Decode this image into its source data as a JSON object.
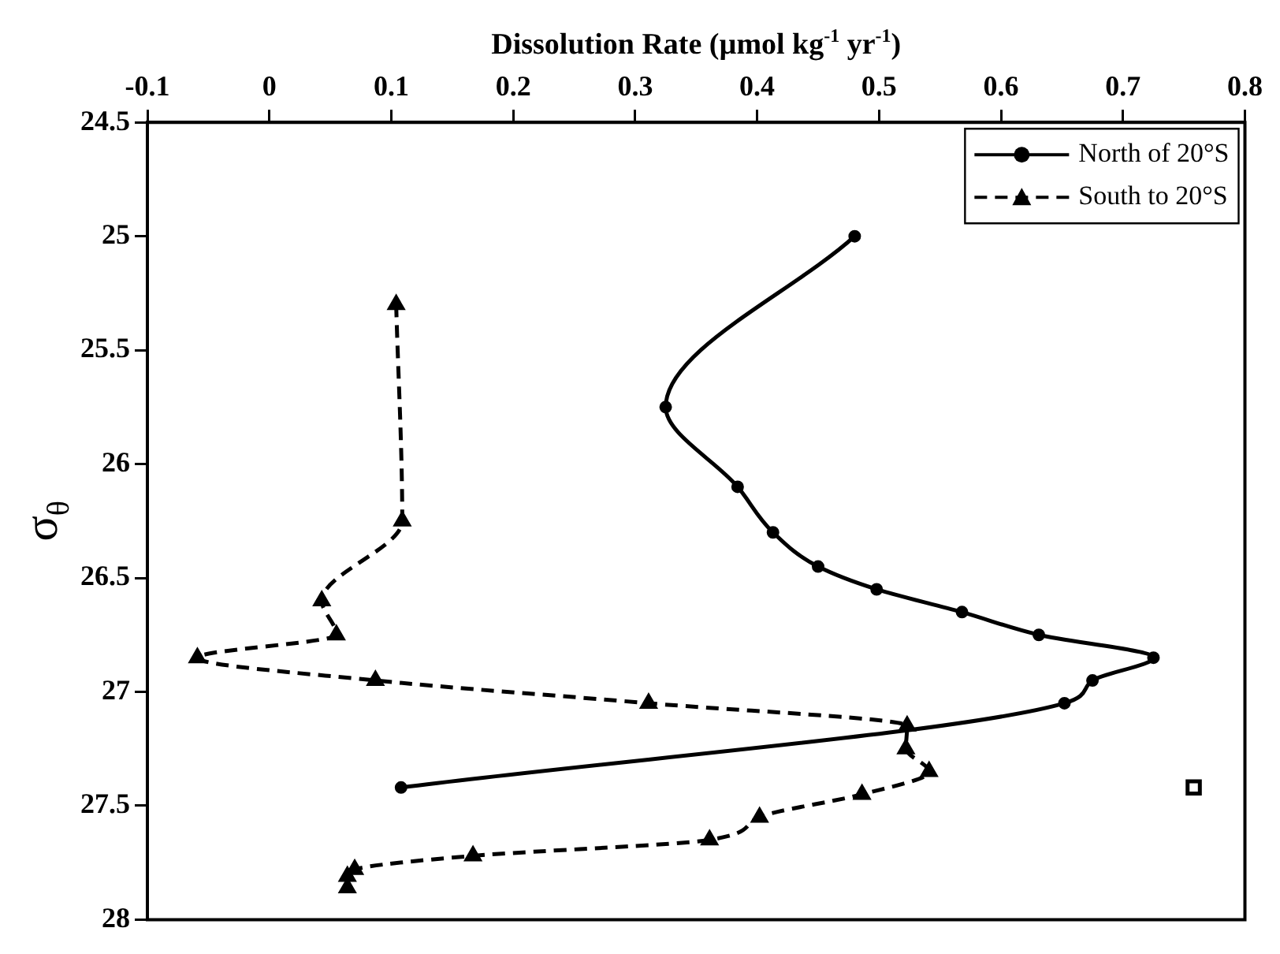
{
  "chart_data": {
    "type": "line",
    "xlabel": "Dissolution Rate (µmol kg$^{-1}$ yr$^{-1}$)",
    "ylabel": "σ$_{θ}$",
    "xlim": [
      -0.1,
      0.8
    ],
    "xticks": [
      -0.1,
      0,
      0.1,
      0.2,
      0.3,
      0.4,
      0.5,
      0.6,
      0.7,
      0.8
    ],
    "ylim": [
      28,
      24.5
    ],
    "yticks": [
      24.5,
      25,
      25.5,
      26,
      26.5,
      27,
      27.5,
      28
    ],
    "legend": "top right",
    "grid": false,
    "series": [
      {
        "name": "North of 20°S",
        "color": "#000000",
        "marker": "circle",
        "line_style": "solid",
        "x": [
          0.48,
          0.325,
          0.384,
          0.413,
          0.45,
          0.498,
          0.568,
          0.631,
          0.725,
          0.675,
          0.652,
          0.108
        ],
        "values": [
          25.0,
          25.75,
          26.1,
          26.3,
          26.45,
          26.55,
          26.65,
          26.75,
          26.85,
          26.95,
          27.05,
          27.42
        ]
      },
      {
        "name": "South to 20°S",
        "color": "#000000",
        "marker": "triangle",
        "line_style": "dashed",
        "x": [
          0.104,
          0.109,
          0.043,
          0.055,
          -0.059,
          0.087,
          0.311,
          0.523,
          0.522,
          0.541,
          0.486,
          0.402,
          0.361,
          0.167,
          0.07,
          0.064,
          0.064
        ],
        "values": [
          25.3,
          26.25,
          26.6,
          26.75,
          26.85,
          26.95,
          27.05,
          27.15,
          27.25,
          27.35,
          27.45,
          27.55,
          27.65,
          27.72,
          27.78,
          27.81,
          27.86
        ]
      },
      {
        "type": "scatter",
        "color": "#000000",
        "marker": "square",
        "x": [
          0.758
        ],
        "values": [
          27.42
        ]
      }
    ]
  }
}
